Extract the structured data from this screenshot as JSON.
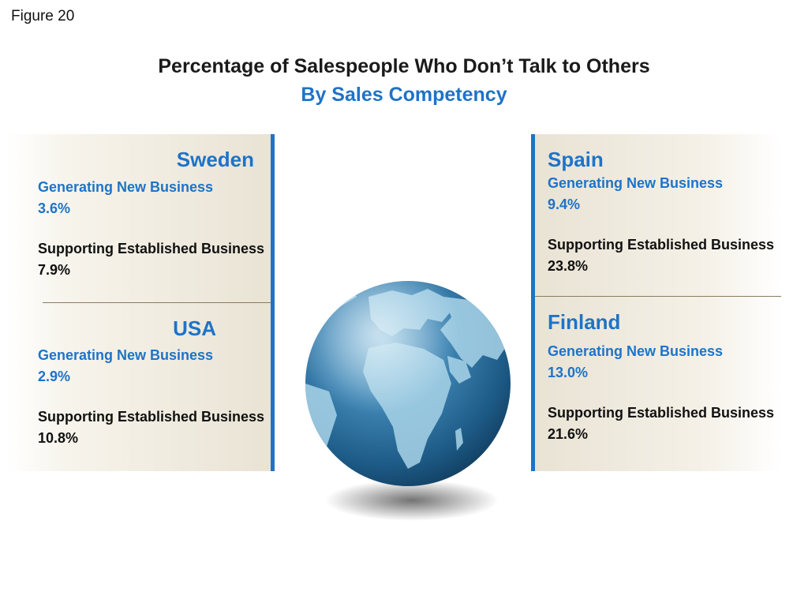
{
  "figure_label": "Figure 20",
  "title": "Percentage of Salespeople Who Don’t Talk to Others",
  "subtitle": "By Sales Competency",
  "colors": {
    "accent_blue": "#1e73c8",
    "panel_beige": "#e9e3d4",
    "divider": "#8b7b5c",
    "globe_blue": "#2f6f9a"
  },
  "regions": {
    "sweden": {
      "name": "Sweden",
      "new_label": "Generating New Business",
      "new_value": "3.6%",
      "est_label": "Supporting Established Business",
      "est_value": "7.9%"
    },
    "usa": {
      "name": "USA",
      "new_label": "Generating New Business",
      "new_value": "2.9%",
      "est_label": "Supporting Established Business",
      "est_value": "10.8%"
    },
    "spain": {
      "name": "Spain",
      "new_label": "Generating New Business",
      "new_value": "9.4%",
      "est_label": "Supporting Established Business",
      "est_value": "23.8%"
    },
    "finland": {
      "name": "Finland",
      "new_label": "Generating New Business",
      "new_value": "13.0%",
      "est_label": "Supporting Established Business",
      "est_value": "21.6%"
    }
  },
  "illustration": {
    "icon": "globe-icon"
  }
}
